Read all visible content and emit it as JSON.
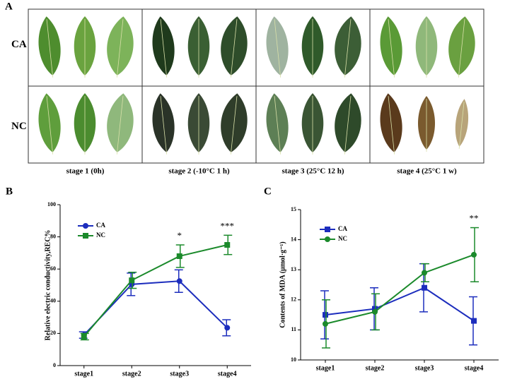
{
  "panel_a": {
    "label": "A",
    "rows": [
      "CA",
      "NC"
    ],
    "columns": [
      "stage 1 (0h)",
      "stage 2 (-10°C 1 h)",
      "stage 3 (25°C 12 h)",
      "stage 4 (25°C 1 w)"
    ]
  },
  "chart_data": [
    {
      "type": "line",
      "panel_label": "B",
      "y_label": "Relative electric conductivity,REC%",
      "categories": [
        "stage1",
        "stage2",
        "stage3",
        "stage4"
      ],
      "series": [
        {
          "name": "CA",
          "color": "#1c2dbd",
          "marker": "circle",
          "values": [
            19,
            50.5,
            52.5,
            23.5
          ],
          "errors": [
            2,
            7,
            7,
            5
          ]
        },
        {
          "name": "NC",
          "color": "#1b8a2b",
          "marker": "square",
          "values": [
            18,
            53,
            68,
            75
          ],
          "errors": [
            2,
            5,
            7,
            6
          ]
        }
      ],
      "annotations": [
        null,
        null,
        "*",
        "***"
      ],
      "ylim": [
        0,
        100
      ],
      "yticks": [
        0,
        20,
        40,
        60,
        80,
        100
      ]
    },
    {
      "type": "line",
      "panel_label": "C",
      "y_label": "Contents of MDA (μmol·g⁻¹)",
      "categories": [
        "stage1",
        "stage2",
        "stage3",
        "stage4"
      ],
      "series": [
        {
          "name": "CA",
          "color": "#1c2dbd",
          "marker": "square",
          "values": [
            11.5,
            11.7,
            12.4,
            11.3
          ],
          "errors": [
            0.8,
            0.7,
            0.8,
            0.8
          ]
        },
        {
          "name": "NC",
          "color": "#1b8a2b",
          "marker": "circle",
          "values": [
            11.2,
            11.6,
            12.9,
            13.5
          ],
          "errors": [
            0.8,
            0.6,
            0.3,
            0.9
          ]
        }
      ],
      "annotations": [
        null,
        null,
        null,
        "**"
      ],
      "ylim": [
        10,
        15
      ],
      "yticks": [
        10,
        11,
        12,
        13,
        14,
        15
      ]
    }
  ]
}
